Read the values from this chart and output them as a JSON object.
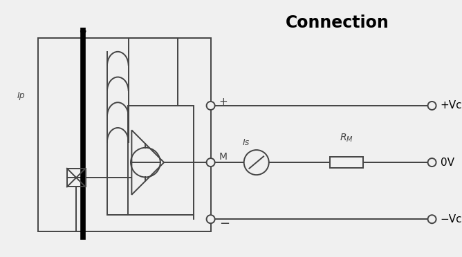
{
  "title": "Connection",
  "title_fontsize": 17,
  "title_fontweight": "bold",
  "bg_color": "#f0f0f0",
  "line_color": "#444444",
  "lw": 1.4,
  "fig_width": 6.68,
  "fig_height": 3.72,
  "dpi": 100,
  "xlim": [
    0,
    10
  ],
  "ylim": [
    0,
    5.57
  ]
}
